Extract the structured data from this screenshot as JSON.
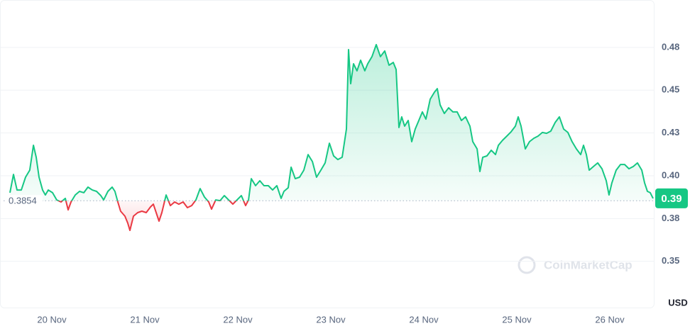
{
  "chart_data": {
    "type": "line",
    "baseline": 0.3854,
    "current_price": 0.3868,
    "current_price_label": "0.39",
    "y_unit": "USD",
    "watermark": "CoinMarketCap",
    "up_color": "#16c784",
    "down_color": "#ea3943",
    "xlim": [
      19.481,
      26.481
    ],
    "xticks": [
      {
        "value": 20,
        "label": "20 Nov"
      },
      {
        "value": 21,
        "label": "21 Nov"
      },
      {
        "value": 22,
        "label": "22 Nov"
      },
      {
        "value": 23,
        "label": "23 Nov"
      },
      {
        "value": 24,
        "label": "24 Nov"
      },
      {
        "value": 25,
        "label": "25 Nov"
      },
      {
        "value": 26,
        "label": "26 Nov"
      }
    ],
    "ylim": [
      0.3226,
      0.5006
    ],
    "yticks": [
      {
        "value": 0.35,
        "label": "0.35"
      },
      {
        "value": 0.375,
        "label": "0.38"
      },
      {
        "value": 0.4,
        "label": "0.40"
      },
      {
        "value": 0.425,
        "label": "0.43"
      },
      {
        "value": 0.45,
        "label": "0.45"
      },
      {
        "value": 0.475,
        "label": "0.48"
      }
    ],
    "grid": true,
    "x": [
      19.55,
      19.588,
      19.626,
      19.672,
      19.718,
      19.763,
      19.802,
      19.832,
      19.863,
      19.901,
      19.931,
      19.962,
      20.008,
      20.053,
      20.099,
      20.145,
      20.176,
      20.206,
      20.252,
      20.298,
      20.344,
      20.389,
      20.435,
      20.481,
      20.527,
      20.557,
      20.603,
      20.649,
      20.679,
      20.71,
      20.74,
      20.786,
      20.817,
      20.84,
      20.878,
      20.924,
      20.969,
      21.015,
      21.061,
      21.092,
      21.122,
      21.153,
      21.183,
      21.229,
      21.275,
      21.321,
      21.366,
      21.412,
      21.458,
      21.504,
      21.55,
      21.595,
      21.641,
      21.687,
      21.718,
      21.763,
      21.809,
      21.855,
      21.901,
      21.947,
      21.992,
      22.038,
      22.084,
      22.115,
      22.145,
      22.191,
      22.237,
      22.282,
      22.328,
      22.374,
      22.42,
      22.466,
      22.496,
      22.542,
      22.573,
      22.618,
      22.664,
      22.71,
      22.756,
      22.802,
      22.847,
      22.893,
      22.939,
      22.985,
      23.031,
      23.076,
      23.122,
      23.168,
      23.191,
      23.214,
      23.244,
      23.282,
      23.321,
      23.366,
      23.397,
      23.443,
      23.489,
      23.534,
      23.58,
      23.626,
      23.672,
      23.702,
      23.733,
      23.763,
      23.794,
      23.832,
      23.87,
      23.908,
      23.947,
      23.985,
      24.023,
      24.069,
      24.115,
      24.145,
      24.176,
      24.221,
      24.267,
      24.313,
      24.359,
      24.405,
      24.45,
      24.496,
      24.527,
      24.573,
      24.603,
      24.634,
      24.679,
      24.725,
      24.771,
      24.802,
      24.847,
      24.893,
      24.939,
      24.985,
      25.015,
      25.046,
      25.092,
      25.137,
      25.183,
      25.229,
      25.275,
      25.321,
      25.366,
      25.412,
      25.458,
      25.504,
      25.55,
      25.595,
      25.641,
      25.687,
      25.718,
      25.748,
      25.779,
      25.824,
      25.87,
      25.916,
      25.962,
      25.992,
      26.023,
      26.069,
      26.115,
      26.16,
      26.206,
      26.252,
      26.298,
      26.344,
      26.374,
      26.405,
      26.435,
      26.466
    ],
    "values": [
      0.3901,
      0.4008,
      0.3917,
      0.3917,
      0.3992,
      0.4033,
      0.4178,
      0.4108,
      0.3992,
      0.3917,
      0.3888,
      0.3917,
      0.3901,
      0.3859,
      0.3847,
      0.3868,
      0.3801,
      0.3847,
      0.3888,
      0.3909,
      0.3901,
      0.3934,
      0.3917,
      0.3909,
      0.3884,
      0.3859,
      0.3909,
      0.3934,
      0.3909,
      0.3847,
      0.3793,
      0.3764,
      0.3723,
      0.3681,
      0.3764,
      0.3785,
      0.3793,
      0.3785,
      0.3818,
      0.3834,
      0.3785,
      0.3735,
      0.3785,
      0.3888,
      0.3826,
      0.3847,
      0.3834,
      0.3847,
      0.3814,
      0.3826,
      0.3859,
      0.3925,
      0.3876,
      0.3847,
      0.3805,
      0.3859,
      0.3855,
      0.3884,
      0.3859,
      0.3834,
      0.3859,
      0.3884,
      0.3826,
      0.3859,
      0.3983,
      0.3942,
      0.3971,
      0.3942,
      0.3942,
      0.3917,
      0.3942,
      0.3868,
      0.3909,
      0.393,
      0.405,
      0.3983,
      0.3992,
      0.4033,
      0.4124,
      0.4083,
      0.3992,
      0.4033,
      0.4075,
      0.419,
      0.4116,
      0.4095,
      0.4108,
      0.4273,
      0.4737,
      0.4538,
      0.4654,
      0.4613,
      0.4675,
      0.4613,
      0.4654,
      0.4696,
      0.4766,
      0.4696,
      0.4729,
      0.4646,
      0.4662,
      0.4621,
      0.4282,
      0.4344,
      0.429,
      0.4323,
      0.4199,
      0.4273,
      0.4323,
      0.4373,
      0.4331,
      0.4447,
      0.4489,
      0.4509,
      0.4414,
      0.4364,
      0.4397,
      0.4373,
      0.4373,
      0.4323,
      0.4344,
      0.429,
      0.4199,
      0.4157,
      0.4025,
      0.4108,
      0.4116,
      0.4149,
      0.4124,
      0.4178,
      0.4207,
      0.4232,
      0.4257,
      0.429,
      0.4344,
      0.429,
      0.4157,
      0.4199,
      0.4219,
      0.4232,
      0.4253,
      0.4248,
      0.4261,
      0.4311,
      0.4344,
      0.4273,
      0.4253,
      0.4199,
      0.4157,
      0.4124,
      0.4178,
      0.4124,
      0.4033,
      0.4054,
      0.4075,
      0.4041,
      0.3971,
      0.3888,
      0.3959,
      0.4033,
      0.4066,
      0.4066,
      0.4041,
      0.4054,
      0.4075,
      0.4033,
      0.3959,
      0.3909,
      0.3901,
      0.3868
    ]
  }
}
